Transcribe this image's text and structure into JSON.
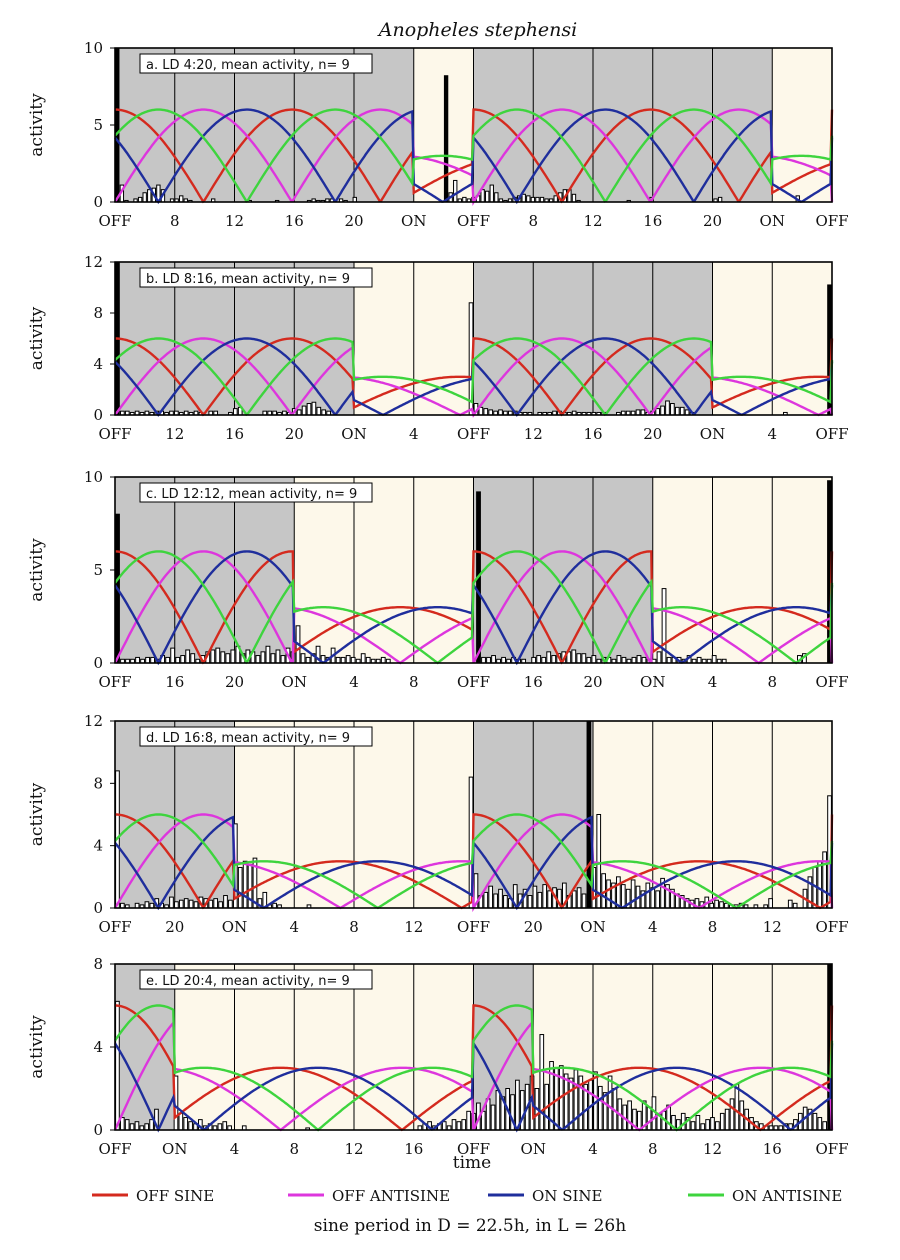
{
  "chart_data": {
    "type": "bar",
    "title": "Anopheles stephensi",
    "xlabel": "time",
    "ylabel": "activity",
    "colors": {
      "dark": "#c6c6c6",
      "light": "#fdf8ea",
      "off_sine": "#d42a1e",
      "off_antisine": "#dd36dd",
      "on_sine": "#1f2e9c",
      "on_antisine": "#3ed43e"
    },
    "legend": [
      {
        "key": "off_sine",
        "label": "OFF SINE"
      },
      {
        "key": "off_antisine",
        "label": "OFF ANTISINE"
      },
      {
        "key": "on_sine",
        "label": "ON SINE"
      },
      {
        "key": "on_antisine",
        "label": "ON ANTISINE"
      }
    ],
    "footnote": "sine period in D = 22.5h, in L = 26h",
    "panels": [
      {
        "label": "a. LD 4:20, mean activity, n= 9",
        "dark_hours": 20,
        "light_hours": 4,
        "ymax": 10,
        "yticks": [
          0,
          5,
          10
        ],
        "xticks": [
          "OFF",
          "8",
          "12",
          "16",
          "20",
          "ON",
          "OFF",
          "8",
          "12",
          "16",
          "20",
          "ON",
          "OFF"
        ],
        "bars": [
          10,
          1.1,
          0.1,
          0,
          0.2,
          0.3,
          0.6,
          0.8,
          0.9,
          1.1,
          0.8,
          0,
          0.2,
          0.2,
          0.4,
          0.2,
          0.1,
          0,
          0,
          0,
          0,
          0.2,
          0,
          0,
          0,
          0,
          0,
          0,
          0,
          0.1,
          0,
          0,
          0,
          0,
          0,
          0.1,
          0,
          0,
          0,
          0,
          0,
          0,
          0.1,
          0.2,
          0.1,
          0.1,
          0.2,
          0.2,
          0,
          0.2,
          0.1,
          0,
          0.3,
          0,
          0,
          0,
          0,
          0,
          0,
          0,
          0,
          0,
          0,
          0,
          0,
          0,
          0,
          0,
          0,
          0,
          0,
          0,
          8.2,
          0.6,
          1.4,
          0.2,
          0.3,
          0.2,
          0.3,
          0.4,
          0.8,
          0.7,
          1.1,
          0.6,
          0.2,
          0.1,
          0.2,
          0.3,
          0.4,
          0.5,
          0.4,
          0.3,
          0.3,
          0.3,
          0.2,
          0.2,
          0.4,
          0.6,
          0.8,
          0.8,
          0.5,
          0.1,
          0,
          0,
          0,
          0,
          0,
          0,
          0,
          0,
          0,
          0,
          0.1,
          0,
          0,
          0,
          0,
          0.3,
          0,
          0,
          0,
          0,
          0,
          0,
          0,
          0,
          0,
          0,
          0,
          0,
          0,
          0.2,
          0.3,
          0,
          0,
          0,
          0,
          0,
          0,
          0,
          0,
          0,
          0,
          0,
          0,
          0,
          0,
          0,
          0,
          0.4,
          0,
          0,
          0,
          0,
          0,
          0,
          0
        ]
      },
      {
        "label": "b. LD 8:16, mean activity, n= 9",
        "dark_hours": 16,
        "light_hours": 8,
        "ymax": 12,
        "yticks": [
          0,
          4,
          8,
          12
        ],
        "xticks": [
          "OFF",
          "12",
          "16",
          "20",
          "ON",
          "4",
          "OFF",
          "12",
          "16",
          "20",
          "ON",
          "4",
          "OFF"
        ],
        "bars": [
          12,
          0.3,
          0.3,
          0.2,
          0.3,
          0.2,
          0.3,
          0.2,
          0.3,
          0.3,
          0.2,
          0.3,
          0.3,
          0.2,
          0.3,
          0.2,
          0.3,
          0.2,
          0,
          0.3,
          0.3,
          0,
          0,
          0.2,
          0.5,
          0.6,
          0,
          0,
          0,
          0,
          0.3,
          0.3,
          0.3,
          0.2,
          0.3,
          0.2,
          0.5,
          0.4,
          0.7,
          0.9,
          1.0,
          0.6,
          0.4,
          0.3,
          0,
          0,
          0,
          0,
          0,
          0,
          0,
          0,
          0,
          0,
          0,
          0,
          0,
          0,
          0,
          0,
          0,
          0,
          0,
          0,
          0,
          0,
          0,
          0,
          0,
          0,
          0,
          0,
          8.8,
          0.9,
          0.6,
          0.5,
          0.4,
          0.3,
          0.4,
          0.3,
          0.3,
          0.3,
          0.2,
          0.2,
          0.2,
          0,
          0.2,
          0.2,
          0.2,
          0.3,
          0.3,
          0.2,
          0.2,
          0.3,
          0.2,
          0.2,
          0.2,
          0.2,
          0.2,
          0.2,
          0,
          0,
          0.2,
          0.3,
          0.3,
          0.3,
          0.4,
          0.4,
          0.2,
          0.3,
          0.5,
          0.7,
          1.1,
          0.9,
          0.6,
          0.6,
          0.4,
          0.2,
          0,
          0,
          0,
          0,
          0,
          0,
          0,
          0,
          0,
          0,
          0,
          0,
          0,
          0,
          0,
          0,
          0,
          0,
          0.2,
          0,
          0,
          0,
          0,
          0,
          0,
          0,
          0,
          10.2
        ]
      },
      {
        "label": "c. LD 12:12, mean activity, n= 9",
        "dark_hours": 12,
        "light_hours": 12,
        "ymax": 10,
        "yticks": [
          0,
          5,
          10
        ],
        "xticks": [
          "OFF",
          "16",
          "20",
          "ON",
          "4",
          "8",
          "OFF",
          "16",
          "20",
          "ON",
          "4",
          "8",
          "OFF"
        ],
        "bars": [
          8,
          0.2,
          0.2,
          0.2,
          0.3,
          0.2,
          0.3,
          0.3,
          0.2,
          0.4,
          0.3,
          0.8,
          0.3,
          0.4,
          0.7,
          0.5,
          0.2,
          0.4,
          0.6,
          0.7,
          0.8,
          0.6,
          0.5,
          0.7,
          0.9,
          0.5,
          0.7,
          0.6,
          0.4,
          0.6,
          0.9,
          0.5,
          0.7,
          0.4,
          0.8,
          0.6,
          2.0,
          0.5,
          0.3,
          0.5,
          0.9,
          0.4,
          0.3,
          0.8,
          0.3,
          0.3,
          0.4,
          0.3,
          0.2,
          0.5,
          0.3,
          0.2,
          0.2,
          0.3,
          0.2,
          0,
          0,
          0,
          0,
          0,
          0,
          0,
          0,
          0,
          0,
          0,
          0,
          0,
          0,
          0,
          0,
          0,
          9.2,
          0.3,
          0.3,
          0.4,
          0.2,
          0.3,
          0.2,
          0.3,
          0.2,
          0.2,
          0,
          0.3,
          0.4,
          0.3,
          0.6,
          0.4,
          0.5,
          0.6,
          0.6,
          0.7,
          0.5,
          0.5,
          0.3,
          0.4,
          0.2,
          0.3,
          0.3,
          0.2,
          0.4,
          0.3,
          0.2,
          0.3,
          0.4,
          0.3,
          0.2,
          0.2,
          0.6,
          4.0,
          0.3,
          0.3,
          0.3,
          0.2,
          0.4,
          0.2,
          0.3,
          0.2,
          0.2,
          0.4,
          0.2,
          0.2,
          0,
          0,
          0,
          0,
          0,
          0,
          0,
          0,
          0,
          0,
          0,
          0,
          0,
          0,
          0.4,
          0.5,
          0,
          0,
          0,
          0,
          9.8
        ]
      },
      {
        "label": "d. LD 16:8, mean activity, n= 9",
        "dark_hours": 8,
        "light_hours": 16,
        "ymax": 12,
        "yticks": [
          0,
          4,
          8,
          12
        ],
        "xticks": [
          "OFF",
          "20",
          "ON",
          "4",
          "8",
          "12",
          "OFF",
          "20",
          "ON",
          "4",
          "8",
          "12",
          "OFF"
        ],
        "bars": [
          8.8,
          0.3,
          0.2,
          0,
          0.3,
          0.2,
          0.4,
          0.3,
          0.6,
          0.3,
          0.2,
          0.7,
          0.4,
          0.5,
          0.6,
          0.5,
          0.4,
          0.7,
          0.6,
          0.5,
          0.6,
          0.4,
          0.8,
          0.5,
          5.4,
          2.6,
          3.0,
          2.8,
          3.2,
          0.6,
          1.0,
          0.2,
          0.3,
          0.2,
          0,
          0,
          0,
          0,
          0,
          0.2,
          0,
          0,
          0,
          0,
          0,
          0,
          0,
          0,
          0,
          0,
          0,
          0,
          0,
          0,
          0,
          0,
          0,
          0,
          0,
          0,
          0,
          0,
          0,
          0,
          0,
          0,
          0,
          0,
          0,
          0,
          0,
          0,
          8.4,
          2.2,
          0.8,
          1.0,
          1.4,
          0.9,
          1.2,
          0.8,
          0.6,
          1.5,
          0.9,
          1.2,
          0.8,
          1.4,
          1.0,
          1.5,
          1.1,
          1.3,
          1.2,
          1.6,
          0.8,
          1.1,
          1.3,
          0.9,
          12,
          2.6,
          6.0,
          2.2,
          1.8,
          1.6,
          2.0,
          1.5,
          1.2,
          1.8,
          1.4,
          1.1,
          1.6,
          1.3,
          1.1,
          1.9,
          1.5,
          1.2,
          0.9,
          0.8,
          0.6,
          0.5,
          0.6,
          0.4,
          0.7,
          0.3,
          0.5,
          0.4,
          0.3,
          0.2,
          0.2,
          0.3,
          0.2,
          0,
          0.2,
          0,
          0.2,
          0.6,
          0,
          0,
          0,
          0.5,
          0.3,
          0,
          1.2,
          2.0,
          2.6,
          3.0,
          3.6,
          7.2
        ]
      },
      {
        "label": "e. LD 20:4, mean activity, n= 9",
        "dark_hours": 4,
        "light_hours": 20,
        "ymax": 8,
        "yticks": [
          0,
          4,
          8
        ],
        "xticks": [
          "OFF",
          "ON",
          "4",
          "8",
          "12",
          "16",
          "OFF",
          "ON",
          "4",
          "8",
          "12",
          "16",
          "OFF"
        ],
        "bars": [
          6.2,
          0.6,
          0.5,
          0.3,
          0.4,
          0.2,
          0.3,
          0.5,
          1.0,
          0,
          0,
          0,
          2.6,
          0.8,
          0.6,
          0.4,
          0.3,
          0.5,
          0.2,
          0.3,
          0.2,
          0.3,
          0.4,
          0.2,
          0,
          0,
          0.2,
          0,
          0,
          0,
          0,
          0,
          0,
          0,
          0,
          0,
          0,
          0,
          0,
          0.1,
          0,
          0,
          0,
          0,
          0,
          0,
          0,
          0,
          0,
          0,
          0,
          0,
          0,
          0,
          0,
          0,
          0,
          0,
          0,
          0,
          0,
          0,
          0.2,
          0.3,
          0.4,
          0.2,
          0.3,
          0.4,
          0.2,
          0.5,
          0.4,
          0.5,
          0.9,
          0.8,
          1.3,
          0.9,
          1.5,
          1.2,
          1.9,
          1.6,
          2.0,
          1.7,
          2.4,
          1.9,
          2.2,
          2.6,
          2.0,
          4.6,
          2.2,
          3.3,
          3.0,
          3.1,
          2.7,
          2.5,
          2.9,
          2.6,
          2.2,
          2.4,
          2.8,
          2.1,
          1.8,
          2.6,
          2.0,
          1.5,
          1.2,
          1.4,
          1.0,
          0.9,
          1.4,
          1.1,
          1.6,
          0.8,
          0.9,
          1.2,
          0.7,
          0.5,
          0.8,
          0.6,
          0.4,
          0.7,
          0.3,
          0.5,
          0.6,
          0.4,
          0.8,
          1.0,
          1.5,
          2.2,
          1.4,
          1.0,
          0.6,
          0.4,
          0.3,
          0.2,
          0.2,
          0.2,
          0.2,
          0.3,
          0.3,
          0.5,
          0.8,
          1.1,
          1.0,
          0.8,
          0.6,
          0.4,
          8
        ]
      }
    ]
  }
}
